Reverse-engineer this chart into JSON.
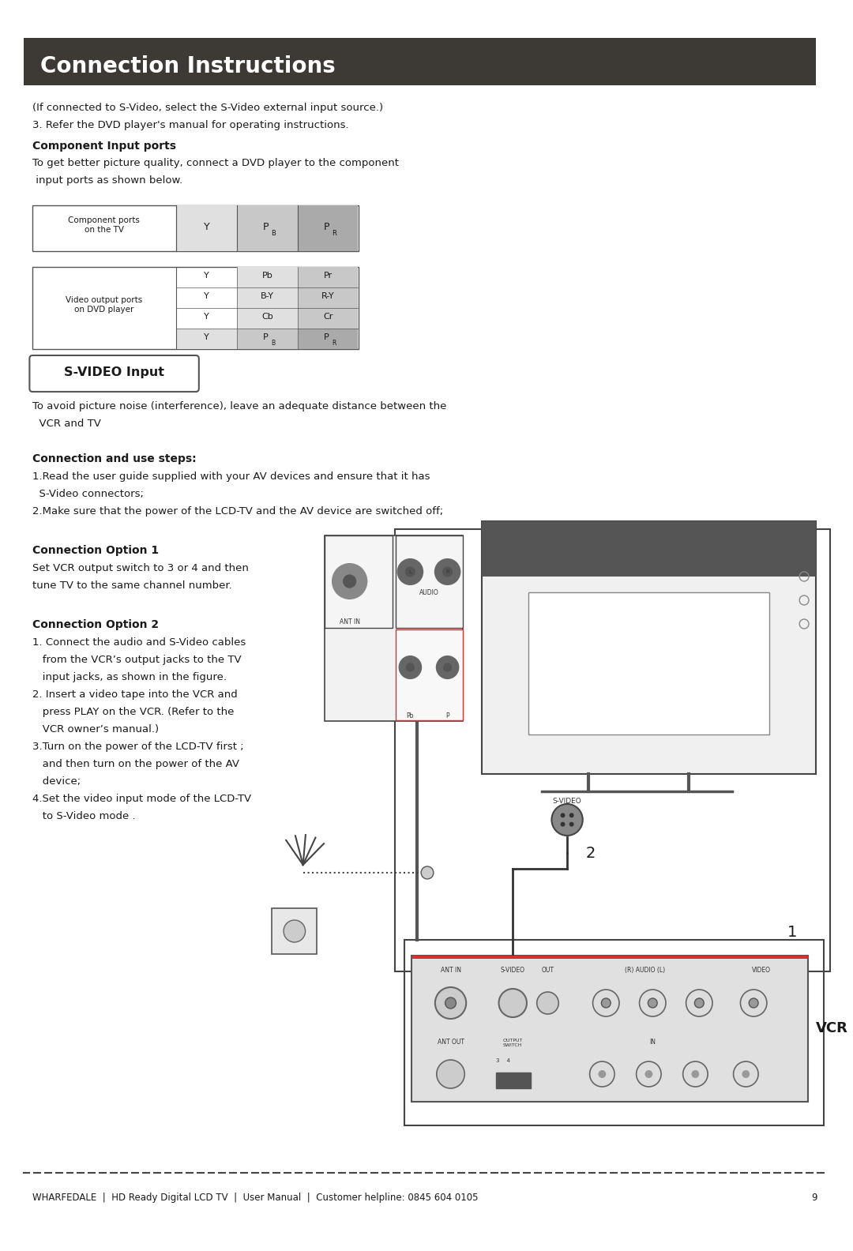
{
  "page_width": 10.8,
  "page_height": 15.84,
  "dpi": 100,
  "background_color": "#ffffff",
  "header_bg_color": "#3d3935",
  "header_text": "Connection Instructions",
  "header_text_color": "#ffffff",
  "header_font_size": 20,
  "body_font_size": 9.5,
  "bold_font_size": 10,
  "small_font_size": 8,
  "footer_font_size": 8.5,
  "text_color": "#1a1a1a",
  "intro_line1": "(If connected to S-Video, select the S-Video external input source.)",
  "intro_line2": "3. Refer the DVD player's manual for operating instructions.",
  "component_input_bold": "Component Input ports",
  "component_input_text1": "To get better picture quality, connect a DVD player to the component",
  "component_input_text2": " input ports as shown below.",
  "table1_label": "Component ports\non the TV",
  "table2_label": "Video output ports\non DVD player",
  "table2_rows": [
    [
      "Y",
      "Pb",
      "Pr"
    ],
    [
      "Y",
      "B-Y",
      "R-Y"
    ],
    [
      "Y",
      "Cb",
      "Cr"
    ],
    [
      "Y",
      "PB",
      "PR"
    ]
  ],
  "svideo_box_text": "S-VIDEO Input",
  "svideo_intro1": "To avoid picture noise (interference), leave an adequate distance between the",
  "svideo_intro2": "  VCR and TV",
  "conn_steps_bold": "Connection and use steps:",
  "conn_step1a": "1.Read the user guide supplied with your AV devices and ensure that it has",
  "conn_step1b": "  S-Video connectors;",
  "conn_step2": "2.Make sure that the power of the LCD-TV and the AV device are switched off;",
  "conn_opt1_bold": "Connection Option 1",
  "conn_opt1_text1": "Set VCR output switch to 3 or 4 and then",
  "conn_opt1_text2": "tune TV to the same channel number.",
  "conn_opt2_bold": "Connection Option 2",
  "conn_opt2_steps": [
    "1. Connect the audio and S-Video cables",
    "   from the VCR’s output jacks to the TV",
    "   input jacks, as shown in the figure.",
    "2. Insert a video tape into the VCR and",
    "   press PLAY on the VCR. (Refer to the",
    "   VCR owner’s manual.)",
    "3.Turn on the power of the LCD-TV first ;",
    "   and then turn on the power of the AV",
    "   device;",
    "4.Set the video input mode of the LCD-TV",
    "   to S-Video mode ."
  ],
  "label_2": "2",
  "label_1": "1",
  "label_vcr": "VCR",
  "footer_text": "WHARFEDALE  |  HD Ready Digital LCD TV  |  User Manual  |  Customer helpline: 0845 604 0105",
  "footer_page": "9",
  "dashed_line_color": "#444444",
  "table_border_color": "#555555",
  "table_shade_y": "#e0e0e0",
  "table_shade_pb": "#c8c8c8",
  "table_shade_pr": "#aaaaaa"
}
